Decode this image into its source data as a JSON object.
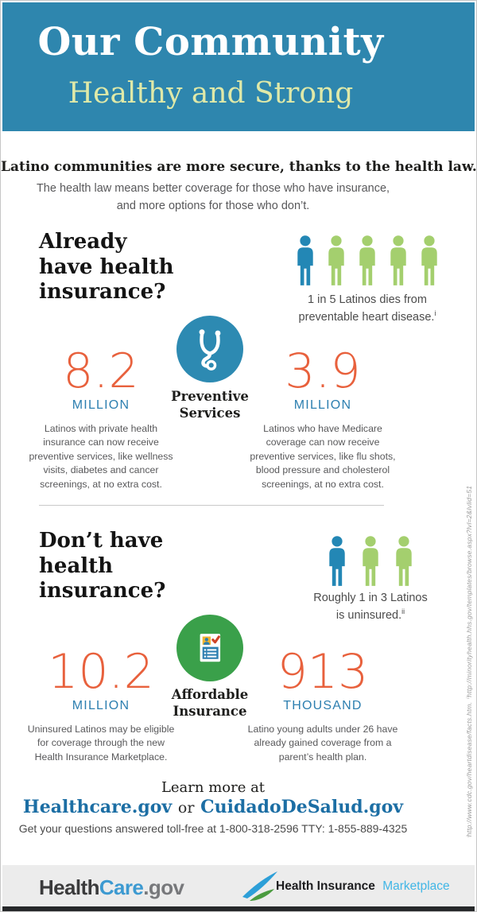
{
  "header": {
    "title": "Our Community",
    "subtitle": "Healthy and Strong"
  },
  "intro": {
    "headline": "Latino communities are more secure, thanks to the health law.",
    "sub_line1": "The health law means better coverage for those who have insurance,",
    "sub_line2": "and more options for those who don’t."
  },
  "already": {
    "heading_lines": [
      "Already",
      "have health",
      "insurance?"
    ],
    "pictogram": {
      "icon": "person-icon",
      "total": 5,
      "highlighted": 1,
      "highlight_color": "#2387b5",
      "base_color": "#a4cf6e"
    },
    "caption_line1": "1 in 5 Latinos dies from",
    "caption_line2": "preventable heart disease.",
    "caption_footnote": "i",
    "badge": {
      "icon": "stethoscope-icon",
      "color": "#2d8ab2",
      "label_line1": "Preventive",
      "label_line2": "Services"
    },
    "stat_left": {
      "value": "8.2",
      "unit": "MILLION",
      "text": "Latinos with private health insurance can now receive preventive services, like wellness visits, diabetes and cancer screenings, at no extra cost."
    },
    "stat_right": {
      "value": "3.9",
      "unit": "MILLION",
      "text": "Latinos who have Medicare coverage can now receive preventive services, like flu shots, blood pressure and cholesterol screenings, at no extra cost."
    }
  },
  "dont": {
    "heading_lines": [
      "Don’t have",
      "health",
      "insurance?"
    ],
    "pictogram": {
      "icon": "person-icon",
      "total": 3,
      "highlighted": 1,
      "highlight_color": "#2387b5",
      "base_color": "#a4cf6e"
    },
    "caption_line1": "Roughly 1 in 3 Latinos",
    "caption_line2": "is uninsured.",
    "caption_footnote": "ii",
    "badge": {
      "icon": "insurance-card-icon",
      "color": "#3aa04a",
      "label_line1": "Affordable",
      "label_line2": "Insurance"
    },
    "stat_left": {
      "value": "10.2",
      "unit": "MILLION",
      "text": "Uninsured Latinos may be eligible for coverage through the new Health Insurance Marketplace."
    },
    "stat_right": {
      "value": "913",
      "unit": "THOUSAND",
      "text": "Latino young adults under 26 have already gained coverage from a parent’s health plan."
    }
  },
  "learn_more": {
    "label": "Learn more at",
    "link1": "Healthcare.gov",
    "conjunction": "or",
    "link2": "CuidadoDeSalud.gov",
    "phone_line": "Get your questions answered toll-free at 1-800-318-2596 TTY: 1-855-889-4325"
  },
  "citation": "ⁱhttp://www.cdc.gov/heartdisease/facts.htm. ⁱⁱhttp://minorityhealth.hhs.gov/templates/browse.aspx?lvl=2&lvlid=51",
  "footer": {
    "healthcare_logo": {
      "part1": "Health",
      "part2": "Care",
      "part3": ".gov"
    },
    "marketplace_logo": {
      "icon": "swoosh-icon",
      "text_dark": "Health Insurance",
      "text_light": "Marketplace"
    }
  },
  "colors": {
    "header_bg": "#2e86ae",
    "header_subtitle": "#dfe9a8",
    "stat_number_orange": "#e8613d",
    "stat_unit_blue": "#2d7fb0",
    "person_blue": "#2387b5",
    "person_green": "#a4cf6e",
    "preventive_circle_teal": "#2d8ab2",
    "affordable_circle_green": "#3aa04a",
    "link_blue": "#1c6ea4",
    "marketplace_blue": "#41b6e6",
    "footer_bg": "#ececec",
    "bottom_bar": "#26282a"
  }
}
